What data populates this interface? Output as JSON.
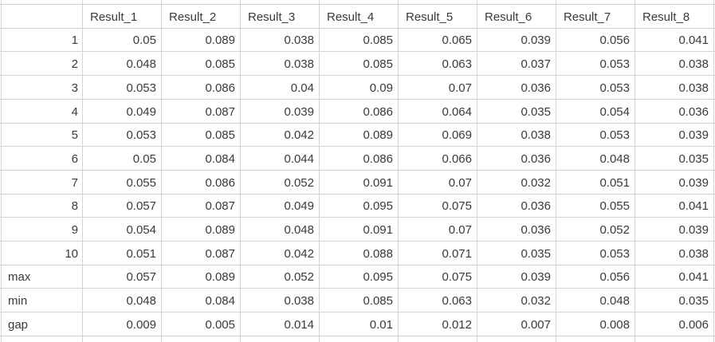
{
  "sheet": {
    "column_headers": [
      "Result_1",
      "Result_2",
      "Result_3",
      "Result_4",
      "Result_5",
      "Result_6",
      "Result_7",
      "Result_8"
    ],
    "rows": [
      {
        "label": "1",
        "values": [
          "0.05",
          "0.089",
          "0.038",
          "0.085",
          "0.065",
          "0.039",
          "0.056",
          "0.041"
        ]
      },
      {
        "label": "2",
        "values": [
          "0.048",
          "0.085",
          "0.038",
          "0.085",
          "0.063",
          "0.037",
          "0.053",
          "0.038"
        ]
      },
      {
        "label": "3",
        "values": [
          "0.053",
          "0.086",
          "0.04",
          "0.09",
          "0.07",
          "0.036",
          "0.053",
          "0.038"
        ]
      },
      {
        "label": "4",
        "values": [
          "0.049",
          "0.087",
          "0.039",
          "0.086",
          "0.064",
          "0.035",
          "0.054",
          "0.036"
        ]
      },
      {
        "label": "5",
        "values": [
          "0.053",
          "0.085",
          "0.042",
          "0.089",
          "0.069",
          "0.038",
          "0.053",
          "0.039"
        ]
      },
      {
        "label": "6",
        "values": [
          "0.05",
          "0.084",
          "0.044",
          "0.086",
          "0.066",
          "0.036",
          "0.048",
          "0.035"
        ]
      },
      {
        "label": "7",
        "values": [
          "0.055",
          "0.086",
          "0.052",
          "0.091",
          "0.07",
          "0.032",
          "0.051",
          "0.039"
        ]
      },
      {
        "label": "8",
        "values": [
          "0.057",
          "0.087",
          "0.049",
          "0.095",
          "0.075",
          "0.036",
          "0.055",
          "0.041"
        ]
      },
      {
        "label": "9",
        "values": [
          "0.054",
          "0.089",
          "0.048",
          "0.091",
          "0.07",
          "0.036",
          "0.052",
          "0.039"
        ]
      },
      {
        "label": "10",
        "values": [
          "0.051",
          "0.087",
          "0.042",
          "0.088",
          "0.071",
          "0.035",
          "0.053",
          "0.038"
        ]
      },
      {
        "label": "max",
        "values": [
          "0.057",
          "0.089",
          "0.052",
          "0.095",
          "0.075",
          "0.039",
          "0.056",
          "0.041"
        ]
      },
      {
        "label": "min",
        "values": [
          "0.048",
          "0.084",
          "0.038",
          "0.085",
          "0.063",
          "0.032",
          "0.048",
          "0.035"
        ]
      },
      {
        "label": "gap",
        "values": [
          "0.009",
          "0.005",
          "0.014",
          "0.01",
          "0.012",
          "0.007",
          "0.008",
          "0.006"
        ]
      }
    ]
  },
  "colors": {
    "gridline": "#d4d4d4",
    "text": "#3a3a3a",
    "background": "#ffffff"
  }
}
